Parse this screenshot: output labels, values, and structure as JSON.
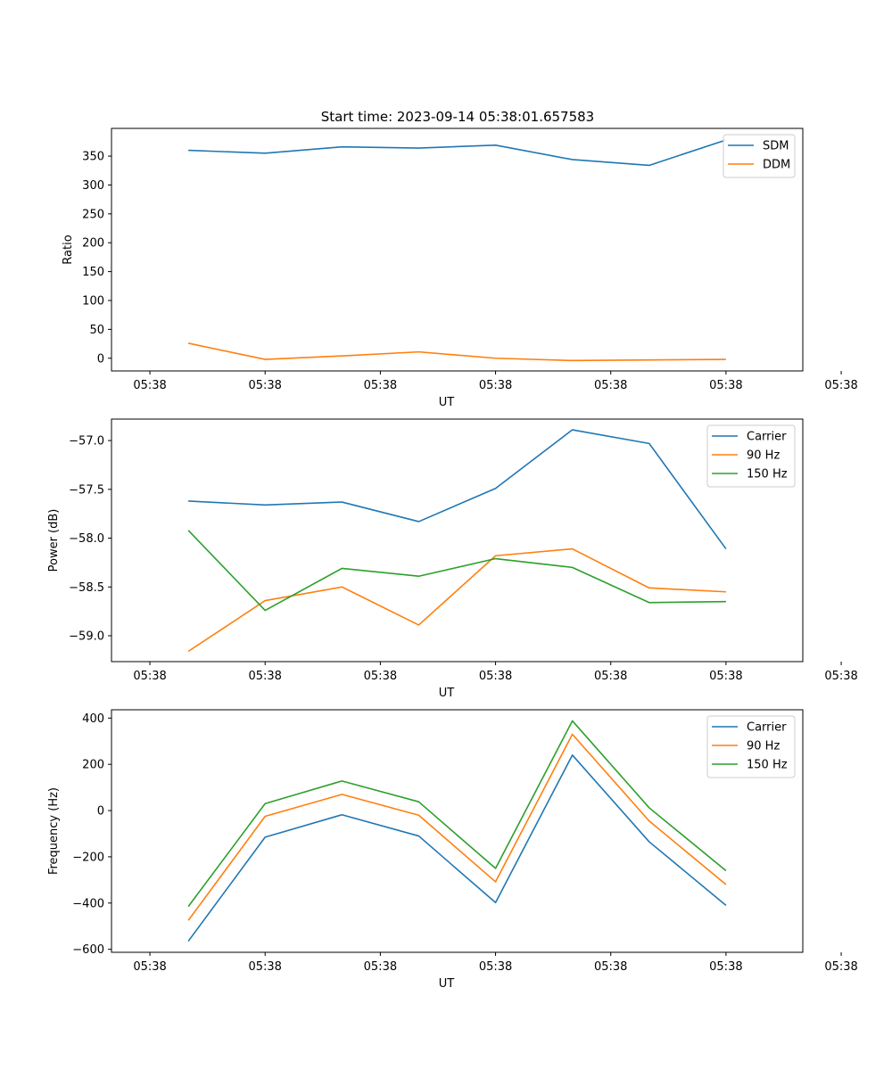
{
  "figure": {
    "title": "Start time: 2023-09-14 05:38:01.657583"
  },
  "chart_data": [
    {
      "type": "line",
      "title": "Start time: 2023-09-14 05:38:01.657583",
      "xlabel": "UT",
      "ylabel": "Ratio",
      "xlim": [
        -0.5,
        8.5
      ],
      "ylim": [
        -22,
        398
      ],
      "x": [
        0.5,
        1.5,
        2.5,
        3.5,
        4.5,
        5.5,
        6.5,
        7.5
      ],
      "xticks": [
        0,
        1.5,
        3,
        4.5,
        6,
        7.5,
        9
      ],
      "xtick_labels": [
        "05:38",
        "05:38",
        "05:38",
        "05:38",
        "05:38",
        "05:38",
        "05:38"
      ],
      "yticks": [
        0,
        50,
        100,
        150,
        200,
        250,
        300,
        350
      ],
      "ytick_labels": [
        "0",
        "50",
        "100",
        "150",
        "200",
        "250",
        "300",
        "350"
      ],
      "legend": "top-right",
      "series": [
        {
          "name": "SDM",
          "color": "#1f77b4",
          "values": [
            360,
            355,
            366,
            364,
            369,
            344,
            334,
            378
          ]
        },
        {
          "name": "DDM",
          "color": "#ff7f0e",
          "values": [
            26,
            -2,
            4,
            11,
            0,
            -4,
            -3,
            -2
          ]
        }
      ]
    },
    {
      "type": "line",
      "title": "",
      "xlabel": "UT",
      "ylabel": "Power (dB)",
      "xlim": [
        -0.5,
        8.5
      ],
      "ylim": [
        -59.265,
        -56.78
      ],
      "x": [
        0.5,
        1.5,
        2.5,
        3.5,
        4.5,
        5.5,
        6.5,
        7.5
      ],
      "xticks": [
        0,
        1.5,
        3,
        4.5,
        6,
        7.5,
        9
      ],
      "xtick_labels": [
        "05:38",
        "05:38",
        "05:38",
        "05:38",
        "05:38",
        "05:38",
        "05:38"
      ],
      "yticks": [
        -59.0,
        -58.5,
        -58.0,
        -57.5,
        -57.0
      ],
      "ytick_labels": [
        "−59.0",
        "−58.5",
        "−58.0",
        "−57.5",
        "−57.0"
      ],
      "legend": "top-right",
      "series": [
        {
          "name": "Carrier",
          "color": "#1f77b4",
          "values": [
            -57.62,
            -57.66,
            -57.63,
            -57.83,
            -57.49,
            -56.89,
            -57.03,
            -58.11
          ]
        },
        {
          "name": "90 Hz",
          "color": "#ff7f0e",
          "values": [
            -59.16,
            -58.64,
            -58.5,
            -58.89,
            -58.18,
            -58.11,
            -58.51,
            -58.55
          ]
        },
        {
          "name": "150 Hz",
          "color": "#2ca02c",
          "values": [
            -57.92,
            -58.74,
            -58.31,
            -58.39,
            -58.21,
            -58.3,
            -58.66,
            -58.65
          ]
        }
      ]
    },
    {
      "type": "line",
      "title": "",
      "xlabel": "UT",
      "ylabel": "Frequency (Hz)",
      "xlim": [
        -0.5,
        8.5
      ],
      "ylim": [
        -613,
        436
      ],
      "x": [
        0.5,
        1.5,
        2.5,
        3.5,
        4.5,
        5.5,
        6.5,
        7.5
      ],
      "xticks": [
        0,
        1.5,
        3,
        4.5,
        6,
        7.5,
        9
      ],
      "xtick_labels": [
        "05:38",
        "05:38",
        "05:38",
        "05:38",
        "05:38",
        "05:38",
        "05:38"
      ],
      "yticks": [
        -600,
        -400,
        -200,
        0,
        200,
        400
      ],
      "ytick_labels": [
        "−600",
        "−400",
        "−200",
        "0",
        "200",
        "400"
      ],
      "legend": "top-right",
      "series": [
        {
          "name": "Carrier",
          "color": "#1f77b4",
          "values": [
            -565,
            -115,
            -18,
            -110,
            -398,
            240,
            -135,
            -410
          ]
        },
        {
          "name": "90 Hz",
          "color": "#ff7f0e",
          "values": [
            -475,
            -25,
            70,
            -20,
            -308,
            330,
            -45,
            -320
          ]
        },
        {
          "name": "150 Hz",
          "color": "#2ca02c",
          "values": [
            -415,
            30,
            128,
            38,
            -250,
            388,
            12,
            -260
          ]
        }
      ]
    }
  ]
}
